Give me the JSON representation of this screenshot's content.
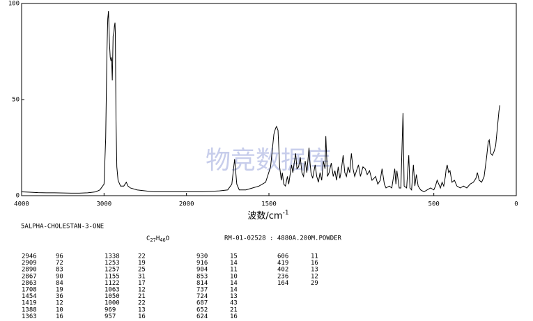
{
  "chart_data": {
    "type": "line",
    "compound": "5ALPHA-CHOLESTAN-3-ONE",
    "formula": [
      "C",
      "27",
      "H",
      "46",
      "O"
    ],
    "sample": "RM-01-02528 : 4880A.200M.POWDER",
    "watermark": "物竞数据库",
    "x_label": "波数/cm",
    "x_label_exponent": "-1",
    "xlim": [
      4000,
      0
    ],
    "x_scale_break": 2000,
    "xticks": [
      4000,
      3000,
      2000,
      1500,
      500,
      0
    ],
    "ylim": [
      0,
      100
    ],
    "yticks": [
      0,
      50,
      100
    ],
    "color": "#000000",
    "x": [
      4000,
      3900,
      3800,
      3700,
      3600,
      3500,
      3400,
      3300,
      3200,
      3100,
      3050,
      3000,
      2980,
      2965,
      2955,
      2946,
      2935,
      2925,
      2915,
      2909,
      2900,
      2890,
      2880,
      2875,
      2867,
      2863,
      2855,
      2845,
      2830,
      2800,
      2760,
      2730,
      2710,
      2680,
      2600,
      2500,
      2400,
      2300,
      2200,
      2100,
      2000,
      1900,
      1800,
      1750,
      1725,
      1708,
      1695,
      1680,
      1640,
      1600,
      1560,
      1520,
      1490,
      1470,
      1460,
      1454,
      1445,
      1435,
      1425,
      1419,
      1410,
      1400,
      1388,
      1380,
      1363,
      1355,
      1345,
      1338,
      1330,
      1320,
      1310,
      1300,
      1290,
      1280,
      1270,
      1257,
      1253,
      1245,
      1235,
      1220,
      1210,
      1200,
      1190,
      1180,
      1170,
      1160,
      1155,
      1145,
      1135,
      1122,
      1110,
      1100,
      1090,
      1080,
      1070,
      1063,
      1050,
      1040,
      1030,
      1020,
      1010,
      1000,
      990,
      980,
      969,
      957,
      945,
      930,
      916,
      904,
      890,
      875,
      863,
      853,
      840,
      825,
      814,
      800,
      790,
      770,
      755,
      737,
      730,
      724,
      710,
      700,
      687,
      680,
      665,
      652,
      645,
      635,
      624,
      615,
      606,
      595,
      580,
      560,
      540,
      520,
      500,
      490,
      480,
      470,
      460,
      450,
      440,
      430,
      425,
      419,
      410,
      402,
      390,
      375,
      360,
      340,
      320,
      300,
      280,
      260,
      245,
      236,
      225,
      210,
      195,
      180,
      170,
      164,
      155,
      145,
      135,
      125,
      115,
      105,
      100
    ],
    "values": [
      2,
      1.8,
      1.6,
      1.5,
      1.5,
      1.4,
      1.3,
      1.3,
      1.5,
      2,
      3,
      6,
      30,
      75,
      92,
      96,
      80,
      72,
      70,
      72,
      60,
      83,
      85,
      88,
      90,
      84,
      40,
      15,
      8,
      5,
      5,
      7,
      5,
      4,
      3,
      2.5,
      2,
      2,
      2,
      2,
      2,
      2,
      2.5,
      3,
      6,
      19,
      6,
      3,
      3,
      4,
      5,
      7,
      15,
      32,
      35,
      36,
      34,
      15,
      8,
      12,
      6,
      5,
      10,
      6,
      16,
      12,
      18,
      22,
      14,
      15,
      20,
      12,
      10,
      18,
      12,
      25,
      19,
      12,
      9,
      16,
      10,
      7,
      12,
      8,
      18,
      14,
      31,
      10,
      12,
      17,
      10,
      13,
      8,
      15,
      9,
      12,
      21,
      12,
      10,
      15,
      12,
      22,
      14,
      10,
      13,
      16,
      10,
      15,
      14,
      11,
      13,
      8,
      9,
      10,
      6,
      8,
      14,
      6,
      4,
      5,
      4,
      14,
      6,
      13,
      4,
      4,
      43,
      5,
      4,
      21,
      4,
      3,
      16,
      5,
      11,
      5,
      3,
      2,
      3,
      4,
      3,
      5,
      8,
      6,
      4,
      7,
      5,
      10,
      14,
      16,
      12,
      13,
      7,
      8,
      5,
      4,
      5,
      4,
      6,
      7,
      9,
      12,
      8,
      7,
      10,
      20,
      28,
      29,
      22,
      21,
      23,
      26,
      35,
      44,
      47
    ],
    "peaks": [
      [
        2946,
        96
      ],
      [
        2909,
        72
      ],
      [
        2890,
        83
      ],
      [
        2867,
        90
      ],
      [
        2863,
        84
      ],
      [
        1708,
        19
      ],
      [
        1454,
        36
      ],
      [
        1419,
        12
      ],
      [
        1388,
        10
      ],
      [
        1363,
        16
      ],
      [
        1338,
        22
      ],
      [
        1253,
        19
      ],
      [
        1257,
        25
      ],
      [
        1155,
        31
      ],
      [
        1122,
        17
      ],
      [
        1063,
        12
      ],
      [
        1050,
        21
      ],
      [
        1000,
        22
      ],
      [
        969,
        13
      ],
      [
        957,
        16
      ],
      [
        930,
        15
      ],
      [
        916,
        14
      ],
      [
        904,
        11
      ],
      [
        853,
        10
      ],
      [
        814,
        14
      ],
      [
        737,
        14
      ],
      [
        724,
        13
      ],
      [
        687,
        43
      ],
      [
        652,
        21
      ],
      [
        624,
        16
      ],
      [
        606,
        11
      ],
      [
        419,
        16
      ],
      [
        402,
        13
      ],
      [
        236,
        12
      ],
      [
        164,
        29
      ]
    ]
  }
}
